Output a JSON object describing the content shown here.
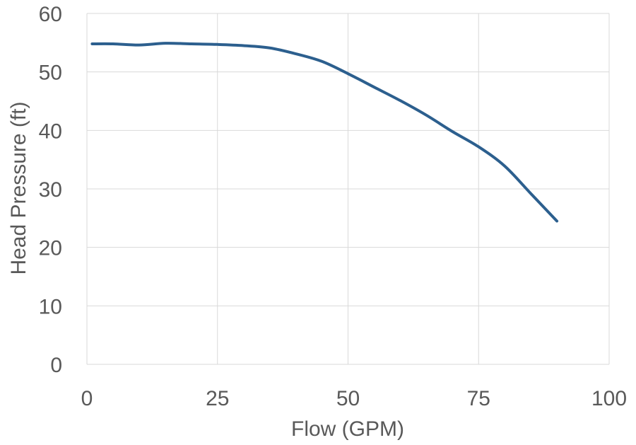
{
  "chart_data": {
    "type": "line",
    "title": "",
    "xlabel": "Flow (GPM)",
    "ylabel": "Head Pressure (ft)",
    "xlim": [
      0,
      100
    ],
    "ylim": [
      0,
      60
    ],
    "xticks": [
      0,
      25,
      50,
      75,
      100
    ],
    "yticks": [
      0,
      10,
      20,
      30,
      40,
      50,
      60
    ],
    "grid": true,
    "legend": "none",
    "series": [
      {
        "color": "#2c5f8e",
        "x": [
          1,
          5,
          10,
          15,
          20,
          25,
          30,
          35,
          40,
          45,
          50,
          55,
          60,
          65,
          70,
          75,
          80,
          85,
          90
        ],
        "y": [
          54.8,
          54.8,
          54.6,
          54.9,
          54.8,
          54.7,
          54.5,
          54.1,
          53.1,
          51.8,
          49.7,
          47.4,
          45.1,
          42.6,
          39.8,
          37.2,
          33.9,
          29.2,
          24.5
        ]
      }
    ]
  }
}
